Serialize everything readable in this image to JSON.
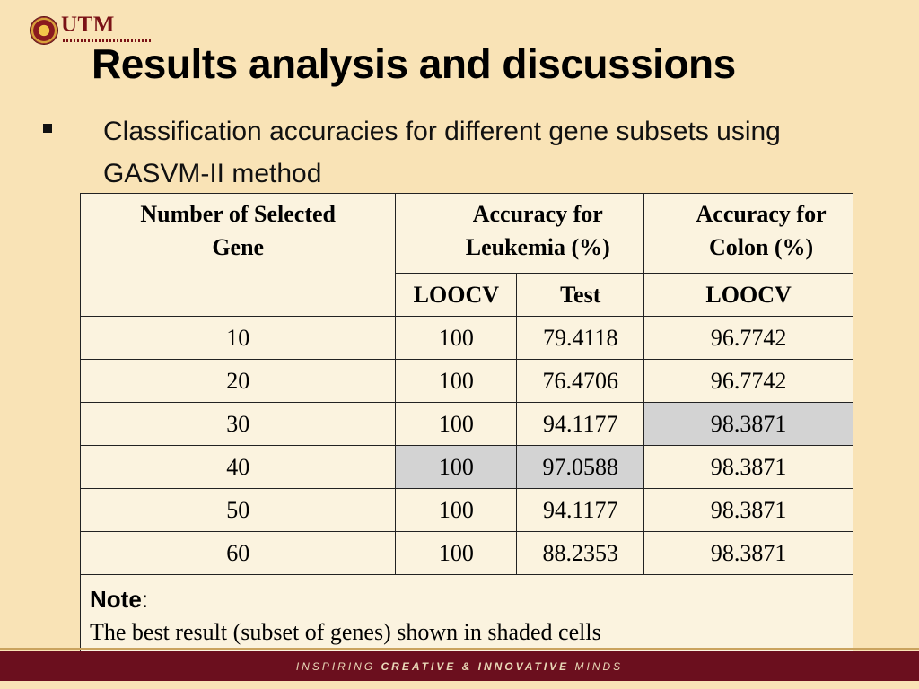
{
  "logo": {
    "text": "UTM"
  },
  "title": "Results analysis and discussions",
  "bullet": "Classification accuracies for different gene subsets using GASVM-II method",
  "table": {
    "header_gene": "Number of Selected Gene",
    "header_leukemia": "Accuracy for Leukemia (%)",
    "header_colon": "Accuracy for Colon (%)",
    "sub_loocv": "LOOCV",
    "sub_test": "Test",
    "sub_colon_loocv": "LOOCV",
    "rows": [
      {
        "gene": "10",
        "leuk_loocv": "100",
        "leuk_test": "79.4118",
        "colon_loocv": "96.7742"
      },
      {
        "gene": "20",
        "leuk_loocv": "100",
        "leuk_test": "76.4706",
        "colon_loocv": "96.7742"
      },
      {
        "gene": "30",
        "leuk_loocv": "100",
        "leuk_test": "94.1177",
        "colon_loocv": "98.3871"
      },
      {
        "gene": "40",
        "leuk_loocv": "100",
        "leuk_test": "97.0588",
        "colon_loocv": "98.3871"
      },
      {
        "gene": "50",
        "leuk_loocv": "100",
        "leuk_test": "94.1177",
        "colon_loocv": "98.3871"
      },
      {
        "gene": "60",
        "leuk_loocv": "100",
        "leuk_test": "88.2353",
        "colon_loocv": "98.3871"
      }
    ],
    "shaded_color": "#d3d3d3",
    "note_label": "Note",
    "note_colon": ":",
    "note_text": "The best result (subset of genes) shown in shaded cells"
  },
  "footer": {
    "pre": "INSPIRING ",
    "strong": "CREATIVE & INNOVATIVE",
    "post": " MINDS"
  },
  "colors": {
    "background": "#f9e3b6",
    "footer": "#6b0f1e",
    "logo": "#7a1216"
  }
}
